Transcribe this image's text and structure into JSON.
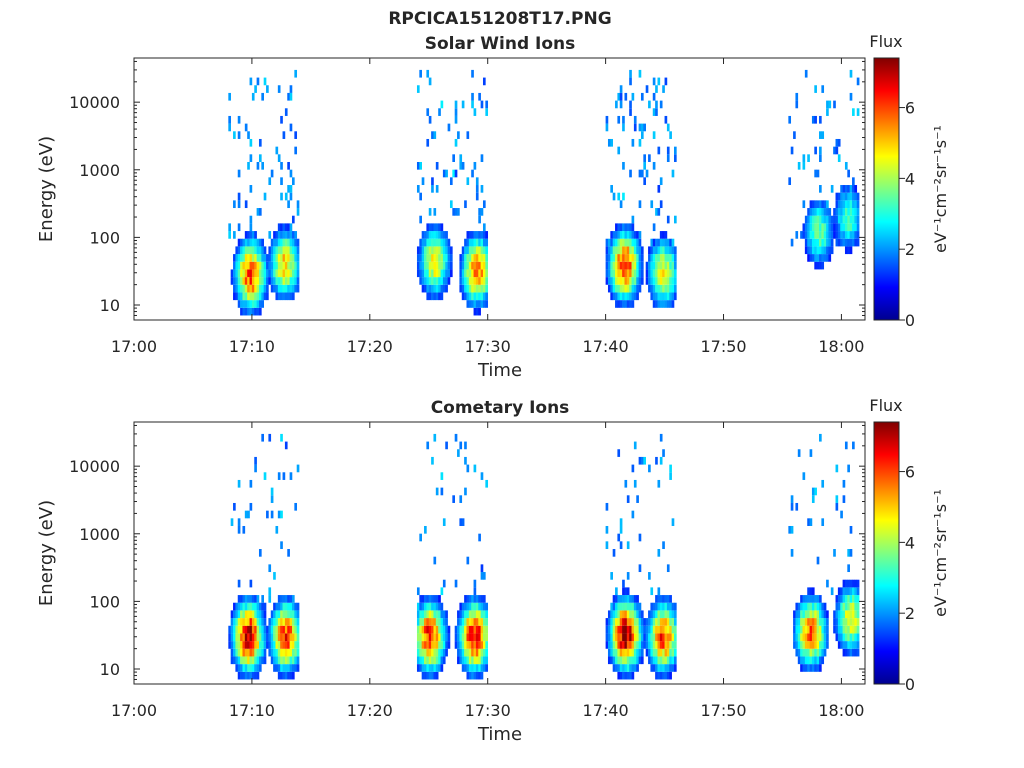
{
  "figure_title": "RPCICA151208T17.PNG",
  "colormap": [
    "#00008f",
    "#0000ff",
    "#0080ff",
    "#00ffff",
    "#80ff80",
    "#ffff00",
    "#ff8000",
    "#ff0000",
    "#800000"
  ],
  "chart_data": [
    {
      "type": "heatmap",
      "title": "Solar Wind Ions",
      "xlabel": "Time",
      "ylabel": "Energy (eV)",
      "xticks": [
        "17:00",
        "17:10",
        "17:20",
        "17:30",
        "17:40",
        "17:50",
        "18:00"
      ],
      "xlim_minutes": [
        0,
        62
      ],
      "yscale": "log",
      "ylim": [
        6,
        45000
      ],
      "yticks": [
        {
          "value": 10,
          "label": "10"
        },
        {
          "value": 100,
          "label": "100"
        },
        {
          "value": 1000,
          "label": "1000"
        },
        {
          "value": 10000,
          "label": "10000"
        }
      ],
      "colorbar": {
        "title": "Flux",
        "label": "eV⁻¹cm⁻²sr⁻¹s⁻¹",
        "ticks": [
          "0",
          "2",
          "4",
          "6"
        ],
        "range": [
          0,
          7.4
        ]
      },
      "bursts": [
        {
          "start_min": 8.0,
          "end_min": 13.8,
          "cores": [
            {
              "t": 9.8,
              "e": 28,
              "f": 6.1
            },
            {
              "t": 12.7,
              "e": 40,
              "f": 4.9
            }
          ]
        },
        {
          "start_min": 24.0,
          "end_min": 29.8,
          "cores": [
            {
              "t": 25.4,
              "e": 45,
              "f": 4.8
            },
            {
              "t": 29.0,
              "e": 32,
              "f": 5.7
            }
          ]
        },
        {
          "start_min": 40.0,
          "end_min": 46.0,
          "cores": [
            {
              "t": 41.5,
              "e": 38,
              "f": 6.4
            },
            {
              "t": 44.8,
              "e": 30,
              "f": 4.6
            }
          ]
        },
        {
          "start_min": 55.5,
          "end_min": 61.5,
          "cores": [
            {
              "t": 58.0,
              "e": 120,
              "f": 3.6
            },
            {
              "t": 60.5,
              "e": 200,
              "f": 3.3
            }
          ]
        }
      ]
    },
    {
      "type": "heatmap",
      "title": "Cometary Ions",
      "xlabel": "Time",
      "ylabel": "Energy (eV)",
      "xticks": [
        "17:00",
        "17:10",
        "17:20",
        "17:30",
        "17:40",
        "17:50",
        "18:00"
      ],
      "xlim_minutes": [
        0,
        62
      ],
      "yscale": "log",
      "ylim": [
        6,
        45000
      ],
      "yticks": [
        {
          "value": 10,
          "label": "10"
        },
        {
          "value": 100,
          "label": "100"
        },
        {
          "value": 1000,
          "label": "1000"
        },
        {
          "value": 10000,
          "label": "10000"
        }
      ],
      "colorbar": {
        "title": "Flux",
        "label": "eV⁻¹cm⁻²sr⁻¹s⁻¹",
        "ticks": [
          "0",
          "2",
          "4",
          "6"
        ],
        "range": [
          0,
          7.4
        ]
      },
      "bursts": [
        {
          "start_min": 8.0,
          "end_min": 13.8,
          "cores": [
            {
              "t": 9.6,
              "e": 30,
              "f": 6.9
            },
            {
              "t": 12.8,
              "e": 30,
              "f": 6.2
            }
          ]
        },
        {
          "start_min": 24.0,
          "end_min": 29.8,
          "cores": [
            {
              "t": 25.0,
              "e": 30,
              "f": 6.4
            },
            {
              "t": 28.8,
              "e": 30,
              "f": 6.8
            }
          ]
        },
        {
          "start_min": 40.0,
          "end_min": 46.0,
          "cores": [
            {
              "t": 41.6,
              "e": 32,
              "f": 7.2
            },
            {
              "t": 44.8,
              "e": 30,
              "f": 6.0
            }
          ]
        },
        {
          "start_min": 55.5,
          "end_min": 61.5,
          "cores": [
            {
              "t": 57.3,
              "e": 35,
              "f": 5.8
            },
            {
              "t": 60.7,
              "e": 55,
              "f": 4.6
            }
          ]
        }
      ]
    }
  ]
}
